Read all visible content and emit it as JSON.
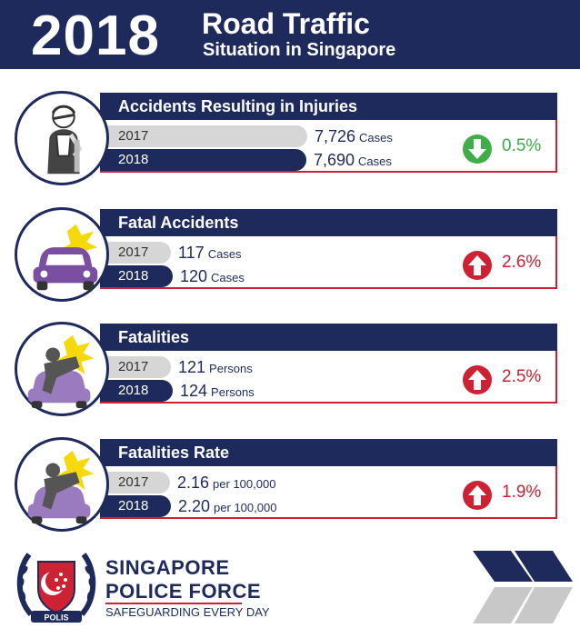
{
  "header": {
    "year": "2018",
    "title_line1": "Road Traffic",
    "title_line2": "Situation in Singapore"
  },
  "colors": {
    "navy": "#1f2a5c",
    "bar_2017": "#d6d6d6",
    "decrease": "#3fae49",
    "increase": "#cc2233",
    "vehicle": "#7a4ea0"
  },
  "chart_data": [
    {
      "type": "bar",
      "title": "Accidents Resulting in Injuries",
      "categories": [
        "2017",
        "2018"
      ],
      "values": [
        7726,
        7690
      ],
      "value_labels": [
        "7,726",
        "7,690"
      ],
      "unit": "Cases",
      "change": "0.5%",
      "change_direction": "down",
      "icon": "injured-person-icon"
    },
    {
      "type": "bar",
      "title": "Fatal Accidents",
      "categories": [
        "2017",
        "2018"
      ],
      "values": [
        117,
        120
      ],
      "value_labels": [
        "117",
        "120"
      ],
      "unit": "Cases",
      "change": "2.6%",
      "change_direction": "up",
      "icon": "car-crash-icon"
    },
    {
      "type": "bar",
      "title": "Fatalities",
      "categories": [
        "2017",
        "2018"
      ],
      "values": [
        121,
        124
      ],
      "value_labels": [
        "121",
        "124"
      ],
      "unit": "Persons",
      "change": "2.5%",
      "change_direction": "up",
      "icon": "pedestrian-hit-icon"
    },
    {
      "type": "bar",
      "title": "Fatalities Rate",
      "categories": [
        "2017",
        "2018"
      ],
      "values": [
        2.16,
        2.2
      ],
      "value_labels": [
        "2.16",
        "2.20"
      ],
      "unit": "per 100,000",
      "change": "1.9%",
      "change_direction": "up",
      "icon": "pedestrian-hit-icon"
    }
  ],
  "footer": {
    "org_line1": "SINGAPORE",
    "org_line2": "POLICE FORCE",
    "tagline": "SAFEGUARDING EVERY DAY",
    "crest_text": "POLIS",
    "crest_icon": "police-crest-icon",
    "decoration_icon": "chevron-arrows-icon"
  }
}
